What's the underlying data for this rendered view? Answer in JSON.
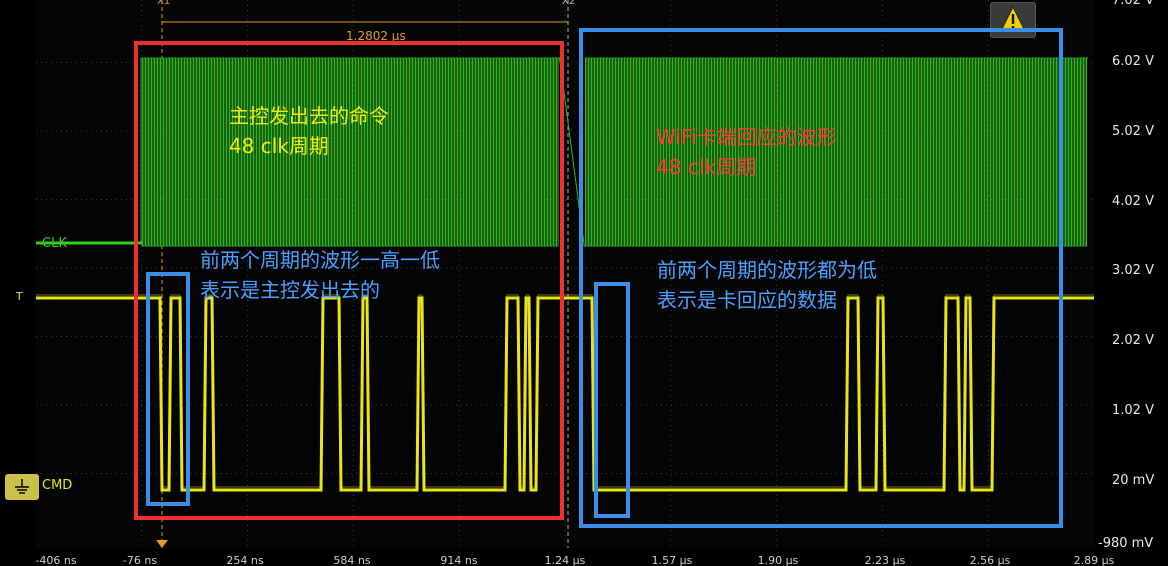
{
  "channels": {
    "clk": "CLK",
    "data": "T",
    "cmd": "CMD"
  },
  "cursors": {
    "x1": "X1",
    "x2": "X2",
    "delta": "1.2802 µs"
  },
  "y_axis": [
    "7.02 V",
    "6.02 V",
    "5.02 V",
    "4.02 V",
    "3.02 V",
    "2.02 V",
    "1.02 V",
    "20 mV",
    "-980 mV"
  ],
  "x_axis": [
    "-406 ns",
    "-76 ns",
    "254 ns",
    "584 ns",
    "914 ns",
    "1.24 µs",
    "1.57 µs",
    "1.90 µs",
    "2.23 µs",
    "2.56 µs",
    "2.89 µs"
  ],
  "annotations": {
    "host_cmd": [
      "主控发出去的命令",
      "48 clk周期"
    ],
    "card_resp": [
      "WiFi卡端回应的波形",
      "48 clk周期"
    ],
    "host_note": [
      "前两个周期的波形一高一低",
      "表示是主控发出去的"
    ],
    "card_note": [
      "前两个周期的波形都为低",
      "表示是卡回应的数据"
    ]
  },
  "colors": {
    "clk": "#33cc22",
    "data": "#e8e61a",
    "red_box": "#f03030",
    "blue_box": "#3a8ee6",
    "blue_text": "#4aa0ff",
    "red_text": "#ff3838",
    "yellow_text": "#f0ea10"
  },
  "icons": {
    "warning": "warning-icon",
    "ground": "ground-icon"
  }
}
